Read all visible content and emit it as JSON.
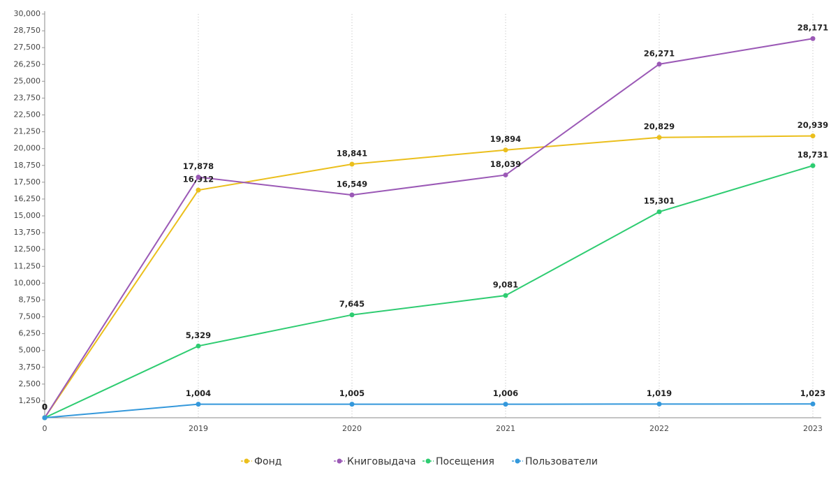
{
  "chart_data": {
    "type": "line",
    "categories": [
      "0",
      "2019",
      "2020",
      "2021",
      "2022",
      "2023"
    ],
    "series": [
      {
        "name": "Фонд",
        "color": "#ebbf1c",
        "values": [
          0,
          16912,
          18841,
          19894,
          20829,
          20939
        ],
        "value_labels": [
          "0",
          "16,912",
          "18,841",
          "19,894",
          "20,829",
          "20,939"
        ]
      },
      {
        "name": "Книговыдача",
        "color": "#9b59b6",
        "values": [
          0,
          17878,
          16549,
          18039,
          26271,
          28171
        ],
        "value_labels": [
          "0",
          "17,878",
          "16,549",
          "18,039",
          "26,271",
          "28,171"
        ]
      },
      {
        "name": "Посещения",
        "color": "#2ecc71",
        "values": [
          0,
          5329,
          7645,
          9081,
          15301,
          18731
        ],
        "value_labels": [
          "0",
          "5,329",
          "7,645",
          "9,081",
          "15,301",
          "18,731"
        ]
      },
      {
        "name": "Пользователи",
        "color": "#3498db",
        "values": [
          0,
          1004,
          1005,
          1006,
          1019,
          1023
        ],
        "value_labels": [
          "0",
          "1,004",
          "1,005",
          "1,006",
          "1,019",
          "1,023"
        ]
      }
    ],
    "ylim": [
      0,
      30000
    ],
    "yticks": [
      {
        "value": 1250,
        "label": "1,250"
      },
      {
        "value": 2500,
        "label": "2,500"
      },
      {
        "value": 3750,
        "label": "3,750"
      },
      {
        "value": 5000,
        "label": "5,000"
      },
      {
        "value": 6250,
        "label": "6,250"
      },
      {
        "value": 7500,
        "label": "7,500"
      },
      {
        "value": 8750,
        "label": "8,750"
      },
      {
        "value": 10000,
        "label": "10,000"
      },
      {
        "value": 11250,
        "label": "11,250"
      },
      {
        "value": 12500,
        "label": "12,500"
      },
      {
        "value": 13750,
        "label": "13,750"
      },
      {
        "value": 15000,
        "label": "15,000"
      },
      {
        "value": 16250,
        "label": "16,250"
      },
      {
        "value": 17500,
        "label": "17,500"
      },
      {
        "value": 18750,
        "label": "18,750"
      },
      {
        "value": 20000,
        "label": "20,000"
      },
      {
        "value": 21250,
        "label": "21,250"
      },
      {
        "value": 22500,
        "label": "22,500"
      },
      {
        "value": 23750,
        "label": "23,750"
      },
      {
        "value": 25000,
        "label": "25,000"
      },
      {
        "value": 26250,
        "label": "26,250"
      },
      {
        "value": 27500,
        "label": "27,500"
      },
      {
        "value": 28750,
        "label": "28,750"
      },
      {
        "value": 30000,
        "label": "30,000"
      }
    ],
    "grid": true,
    "legend": "bottom"
  }
}
